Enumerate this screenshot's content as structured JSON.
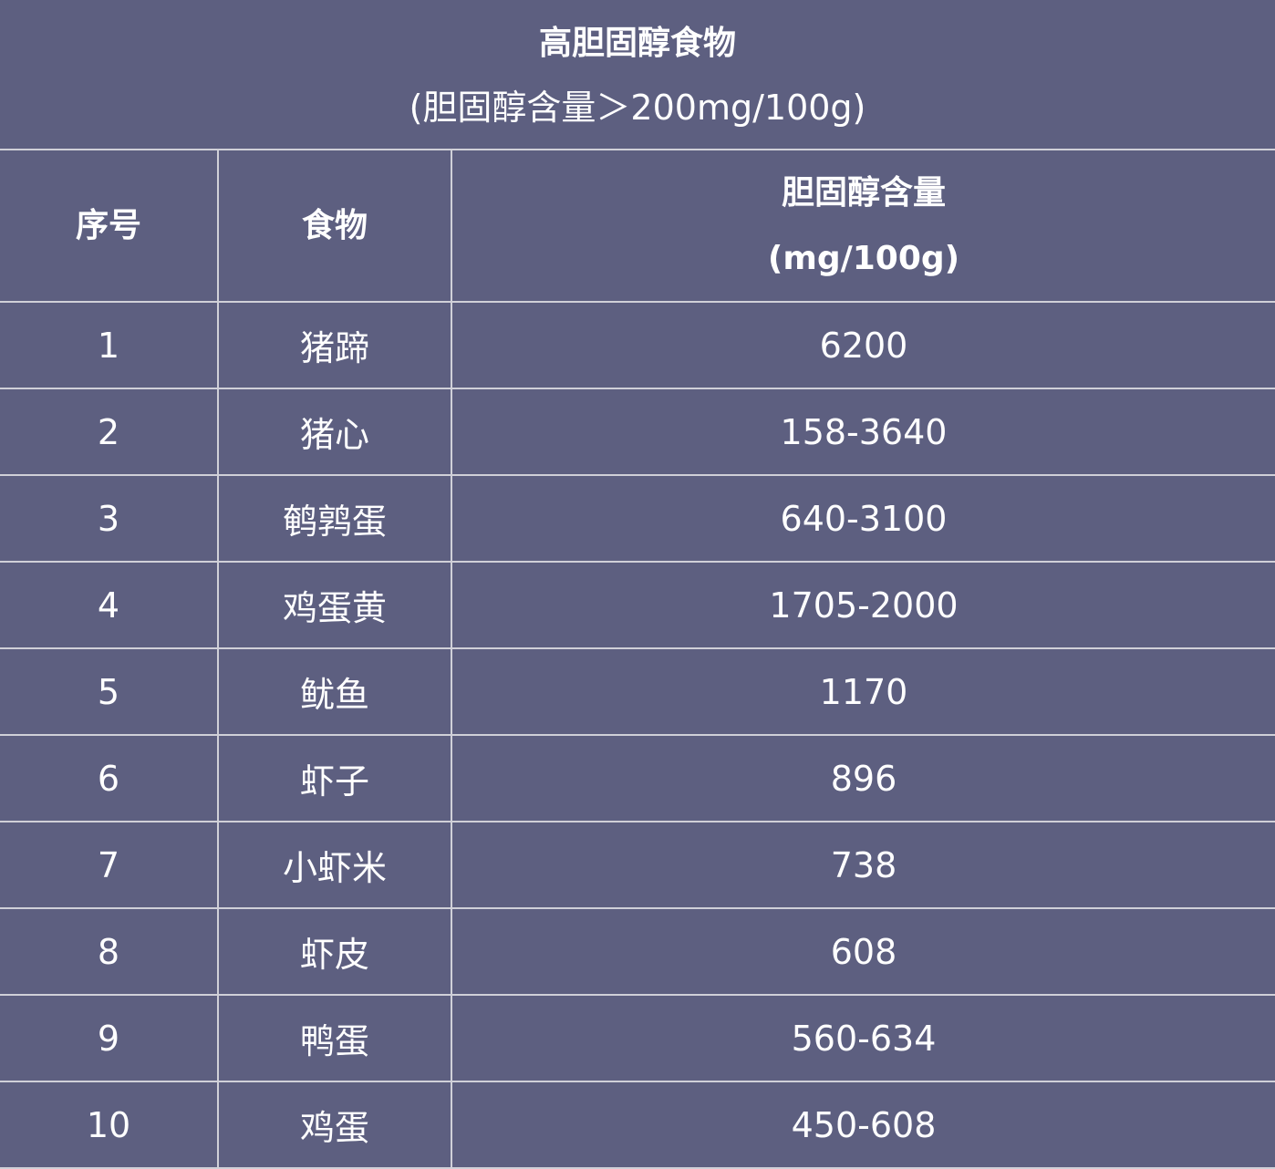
{
  "title": "高胆固醇食物",
  "subtitle": "(胆固醇含量＞200mg/100g)",
  "headers": {
    "index": "序号",
    "food": "食物",
    "content_line1": "胆固醇含量",
    "content_line2": "(mg/100g)"
  },
  "rows": [
    {
      "index": "1",
      "food": "猪蹄",
      "value": "6200"
    },
    {
      "index": "2",
      "food": "猪心",
      "value": "158-3640"
    },
    {
      "index": "3",
      "food": "鹌鹑蛋",
      "value": "640-3100"
    },
    {
      "index": "4",
      "food": "鸡蛋黄",
      "value": "1705-2000"
    },
    {
      "index": "5",
      "food": "鱿鱼",
      "value": "1170"
    },
    {
      "index": "6",
      "food": "虾子",
      "value": "896"
    },
    {
      "index": "7",
      "food": "小虾米",
      "value": "738"
    },
    {
      "index": "8",
      "food": "虾皮",
      "value": "608"
    },
    {
      "index": "9",
      "food": "鸭蛋",
      "value": "560-634"
    },
    {
      "index": "10",
      "food": "鸡蛋",
      "value": "450-608"
    }
  ],
  "colors": {
    "background": "#5d5f80",
    "grid": "#d0d0d8",
    "text": "#ffffff"
  }
}
